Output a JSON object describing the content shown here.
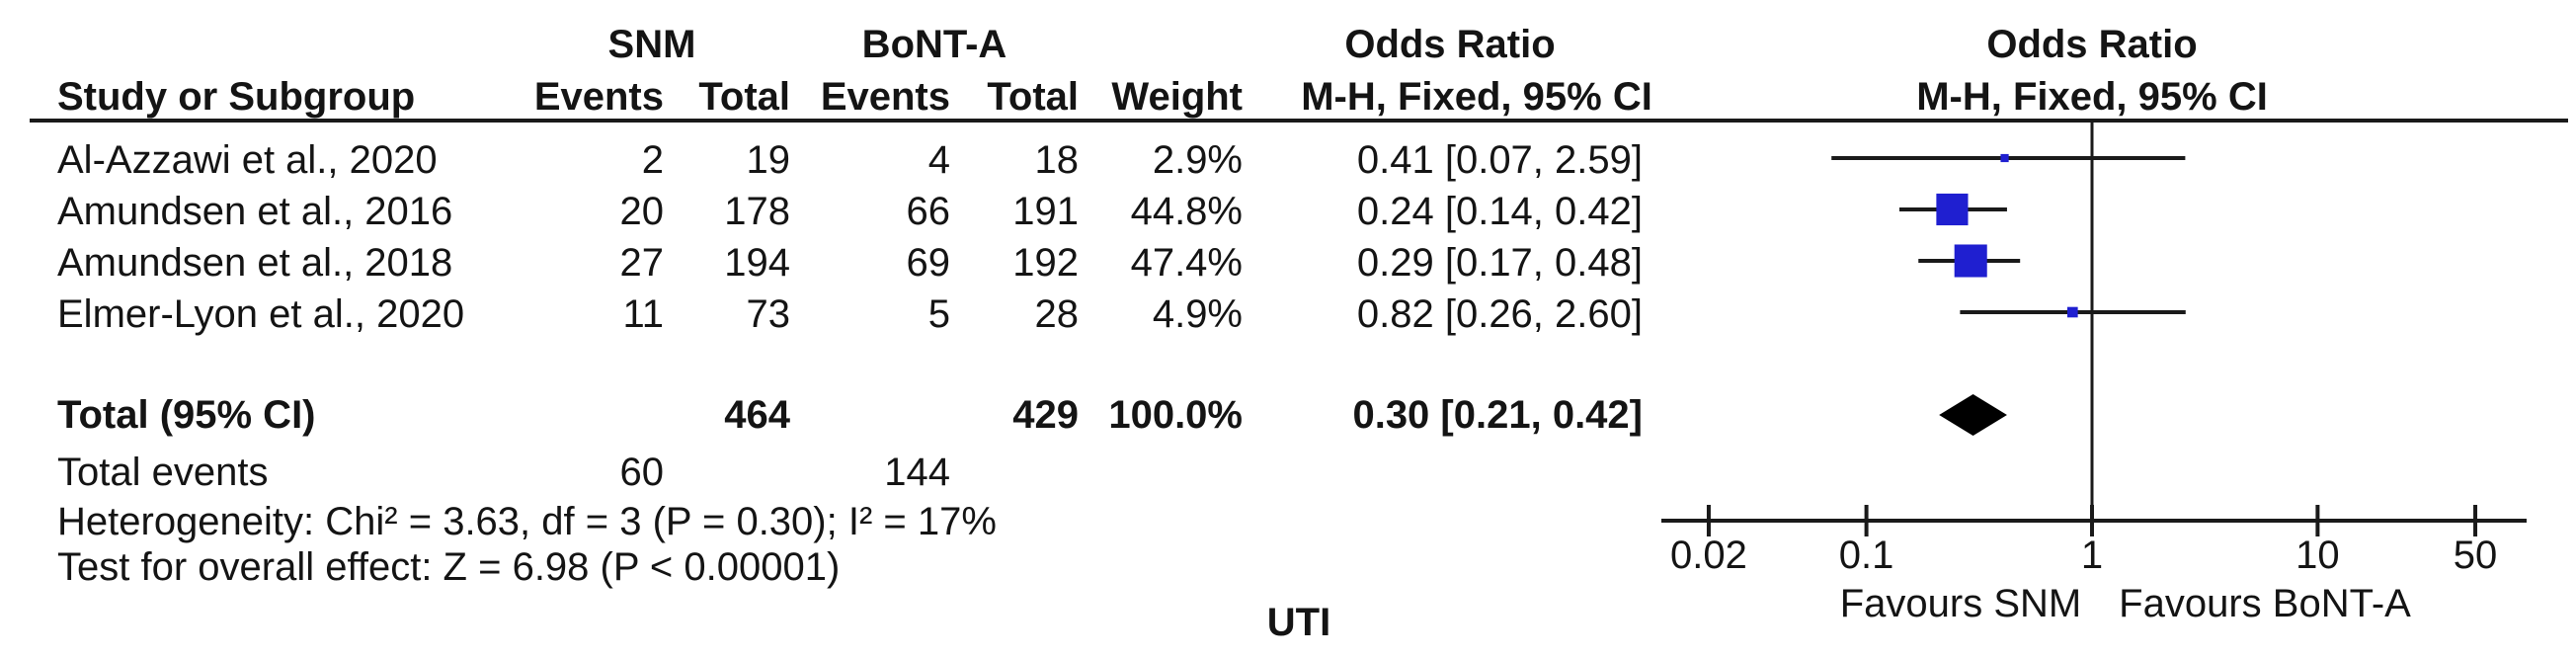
{
  "header": {
    "group_snm": "SNM",
    "group_bonta": "BoNT-A",
    "or_text_title": "Odds Ratio",
    "or_text_subtitle": "M-H, Fixed, 95% CI",
    "or_plot_title": "Odds Ratio",
    "or_plot_subtitle": "M-H, Fixed, 95% CI",
    "col_study": "Study or Subgroup",
    "col_snm_events": "Events",
    "col_snm_total": "Total",
    "col_bonta_events": "Events",
    "col_bonta_total": "Total",
    "col_weight": "Weight"
  },
  "footer": {
    "total_label": "Total (95% CI)",
    "total_events_label": "Total events",
    "heterogeneity": "Heterogeneity: Chi² = 3.63, df = 3 (P = 0.30); I² = 17%",
    "overall_effect": "Test for overall effect: Z = 6.98 (P < 0.00001)",
    "caption": "UTI",
    "favours_left": "Favours SNM",
    "favours_right": "Favours BoNT-A"
  },
  "colors": {
    "square": "#1f1fd0",
    "diamond": "#000000",
    "line": "#1a1a1a",
    "text": "#141414"
  },
  "chart_data": {
    "type": "forest",
    "outcome_label": "UTI",
    "effect_measure": "Odds Ratio (M-H, Fixed, 95% CI)",
    "studies": [
      {
        "name": "Al-Azzawi et al., 2020",
        "snm_events": 2,
        "snm_total": 19,
        "bonta_events": 4,
        "bonta_total": 18,
        "weight_pct": 2.9,
        "or": 0.41,
        "ci_low": 0.07,
        "ci_high": 2.59
      },
      {
        "name": "Amundsen et al., 2016",
        "snm_events": 20,
        "snm_total": 178,
        "bonta_events": 66,
        "bonta_total": 191,
        "weight_pct": 44.8,
        "or": 0.24,
        "ci_low": 0.14,
        "ci_high": 0.42
      },
      {
        "name": "Amundsen et al., 2018",
        "snm_events": 27,
        "snm_total": 194,
        "bonta_events": 69,
        "bonta_total": 192,
        "weight_pct": 47.4,
        "or": 0.29,
        "ci_low": 0.17,
        "ci_high": 0.48
      },
      {
        "name": "Elmer-Lyon et al., 2020",
        "snm_events": 11,
        "snm_total": 73,
        "bonta_events": 5,
        "bonta_total": 28,
        "weight_pct": 4.9,
        "or": 0.82,
        "ci_low": 0.26,
        "ci_high": 2.6
      }
    ],
    "total": {
      "snm_total": 464,
      "bonta_total": 429,
      "weight_pct": 100.0,
      "or": 0.3,
      "ci_low": 0.21,
      "ci_high": 0.42,
      "snm_events": 60,
      "bonta_events": 144
    },
    "heterogeneity": "Chi² = 3.63, df = 3 (P = 0.30); I² = 17%",
    "overall_effect_test": "Z = 6.98 (P < 0.00001)",
    "axis": {
      "scale": "log",
      "ticks": [
        0.02,
        0.1,
        1,
        10,
        50
      ],
      "null_line": 1,
      "xlim": [
        0.012,
        84
      ]
    },
    "favours_left": "Favours SNM",
    "favours_right": "Favours BoNT-A"
  }
}
